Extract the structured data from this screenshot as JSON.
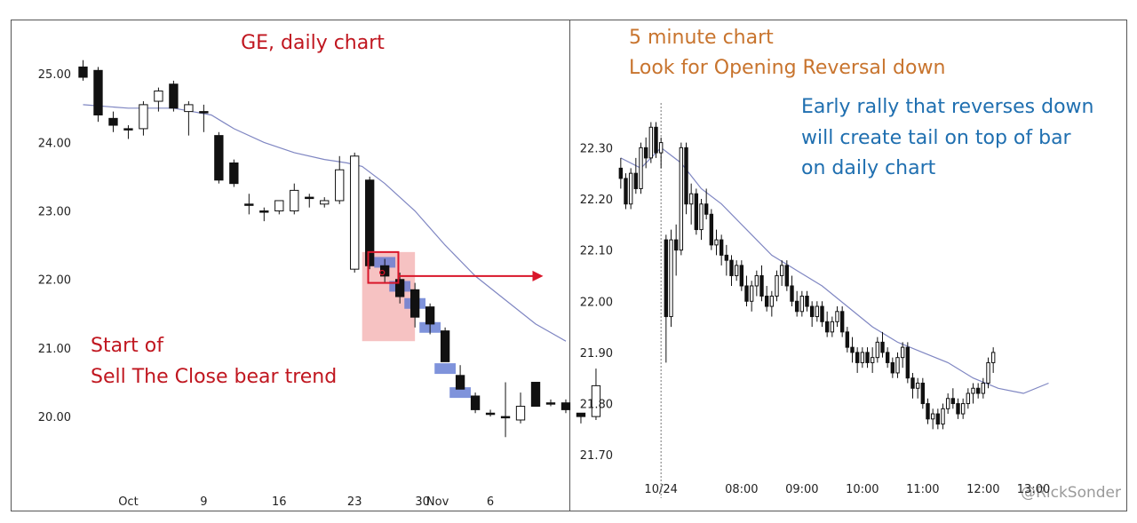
{
  "watermark": "@RickSonder",
  "chart_data": [
    {
      "type": "candlestick",
      "title": "GE, daily chart",
      "annotation_lines": [
        "Start of",
        "Sell The Close bear trend"
      ],
      "ylim": [
        19.6,
        25.3
      ],
      "y_ticks": [
        "25.00",
        "24.00",
        "23.00",
        "22.00",
        "21.00",
        "20.00"
      ],
      "y_tick_values": [
        25,
        24,
        23,
        22,
        21,
        20
      ],
      "x_ticks": [
        {
          "label": "Oct",
          "i": 3
        },
        {
          "label": "9",
          "i": 8
        },
        {
          "label": "16",
          "i": 13
        },
        {
          "label": "23",
          "i": 18
        },
        {
          "label": "30",
          "i": 22.5
        },
        {
          "label": "Nov",
          "i": 23.5
        },
        {
          "label": "6",
          "i": 27
        }
      ],
      "n_slots": 31.5,
      "bars": [
        {
          "o": 25.1,
          "h": 25.2,
          "l": 24.9,
          "c": 24.95
        },
        {
          "o": 25.05,
          "h": 25.1,
          "l": 24.3,
          "c": 24.4
        },
        {
          "o": 24.35,
          "h": 24.45,
          "l": 24.15,
          "c": 24.25
        },
        {
          "o": 24.2,
          "h": 24.25,
          "l": 24.05,
          "c": 24.2
        },
        {
          "o": 24.2,
          "h": 24.6,
          "l": 24.1,
          "c": 24.55
        },
        {
          "o": 24.6,
          "h": 24.8,
          "l": 24.45,
          "c": 24.75
        },
        {
          "o": 24.85,
          "h": 24.9,
          "l": 24.45,
          "c": 24.5
        },
        {
          "o": 24.45,
          "h": 24.6,
          "l": 24.1,
          "c": 24.55
        },
        {
          "o": 24.45,
          "h": 24.55,
          "l": 24.15,
          "c": 24.45
        },
        {
          "o": 24.1,
          "h": 24.15,
          "l": 23.4,
          "c": 23.45
        },
        {
          "o": 23.7,
          "h": 23.75,
          "l": 23.35,
          "c": 23.4
        },
        {
          "o": 23.1,
          "h": 23.25,
          "l": 22.95,
          "c": 23.1
        },
        {
          "o": 23.0,
          "h": 23.05,
          "l": 22.85,
          "c": 23.0
        },
        {
          "o": 23.0,
          "h": 23.15,
          "l": 22.95,
          "c": 23.15
        },
        {
          "o": 23.0,
          "h": 23.4,
          "l": 22.95,
          "c": 23.3
        },
        {
          "o": 23.2,
          "h": 23.25,
          "l": 23.05,
          "c": 23.2
        },
        {
          "o": 23.1,
          "h": 23.2,
          "l": 23.05,
          "c": 23.15
        },
        {
          "o": 23.15,
          "h": 23.8,
          "l": 23.1,
          "c": 23.6
        },
        {
          "o": 22.15,
          "h": 23.85,
          "l": 22.1,
          "c": 23.8
        },
        {
          "o": 23.45,
          "h": 23.5,
          "l": 22.15,
          "c": 22.2
        },
        {
          "o": 22.2,
          "h": 22.3,
          "l": 21.95,
          "c": 22.05
        },
        {
          "o": 22.0,
          "h": 22.1,
          "l": 21.65,
          "c": 21.75
        },
        {
          "o": 21.85,
          "h": 21.95,
          "l": 21.3,
          "c": 21.45
        },
        {
          "o": 21.6,
          "h": 21.65,
          "l": 21.2,
          "c": 21.35
        },
        {
          "o": 21.25,
          "h": 21.3,
          "l": 20.8,
          "c": 20.8
        },
        {
          "o": 20.6,
          "h": 20.75,
          "l": 20.4,
          "c": 20.4
        },
        {
          "o": 20.3,
          "h": 20.35,
          "l": 20.05,
          "c": 20.1
        },
        {
          "o": 20.05,
          "h": 20.1,
          "l": 20.0,
          "c": 20.05
        },
        {
          "o": 20.0,
          "h": 20.5,
          "l": 19.7,
          "c": 20.0
        },
        {
          "o": 19.95,
          "h": 20.35,
          "l": 19.9,
          "c": 20.15
        },
        {
          "o": 20.5,
          "h": 20.5,
          "l": 20.15,
          "c": 20.15
        },
        {
          "o": 20.2,
          "h": 20.25,
          "l": 20.15,
          "c": 20.2
        },
        {
          "o": 20.2,
          "h": 20.25,
          "l": 20.05,
          "c": 20.1
        },
        {
          "o": 20.05,
          "h": 20.05,
          "l": 19.9,
          "c": 20.0
        },
        {
          "o": 20.0,
          "h": 20.7,
          "l": 19.95,
          "c": 20.45
        }
      ],
      "ema": [
        {
          "i": 0,
          "v": 24.55
        },
        {
          "i": 3,
          "v": 24.5
        },
        {
          "i": 6,
          "v": 24.5
        },
        {
          "i": 8.5,
          "v": 24.4
        },
        {
          "i": 10,
          "v": 24.2
        },
        {
          "i": 12,
          "v": 24.0
        },
        {
          "i": 14,
          "v": 23.85
        },
        {
          "i": 16,
          "v": 23.75
        },
        {
          "i": 17.5,
          "v": 23.7
        },
        {
          "i": 18.5,
          "v": 23.65
        },
        {
          "i": 20,
          "v": 23.4
        },
        {
          "i": 22,
          "v": 23.0
        },
        {
          "i": 24,
          "v": 22.5
        },
        {
          "i": 26,
          "v": 22.05
        },
        {
          "i": 28,
          "v": 21.7
        },
        {
          "i": 30,
          "v": 21.35
        },
        {
          "i": 32,
          "v": 21.1
        }
      ],
      "highlight_box": {
        "i_start": 19,
        "i_end": 21.5,
        "y_low": 21.1,
        "y_high": 22.4
      },
      "signal_box": {
        "i_start": 19.4,
        "i_end": 20.4,
        "y_low": 21.95,
        "y_high": 22.4
      },
      "arrow": {
        "i_start": 20.4,
        "i_end": 30.5,
        "y": 22.05
      },
      "blue_marks": [
        {
          "i": 20,
          "y": 22.25
        },
        {
          "i": 21,
          "y": 21.9
        },
        {
          "i": 22,
          "y": 21.65
        },
        {
          "i": 23,
          "y": 21.3
        },
        {
          "i": 24,
          "y": 20.7
        },
        {
          "i": 25,
          "y": 20.35
        }
      ]
    },
    {
      "type": "candlestick",
      "title_lines": [
        "5 minute chart",
        "Look for Opening Reversal down"
      ],
      "annotation_lines": [
        "Early rally that reverses down",
        "will create tail on top of bar",
        "on daily chart"
      ],
      "ylim": [
        21.65,
        22.37
      ],
      "y_ticks": [
        "22.30",
        "22.20",
        "22.10",
        "22.00",
        "21.90",
        "21.80",
        "21.70"
      ],
      "y_tick_values": [
        22.3,
        22.2,
        22.1,
        22.0,
        21.9,
        21.8,
        21.7
      ],
      "x_ticks": [
        {
          "label": "10/24",
          "i": 8
        },
        {
          "label": "08:00",
          "i": 24
        },
        {
          "label": "09:00",
          "i": 36
        },
        {
          "label": "10:00",
          "i": 48
        },
        {
          "label": "11:00",
          "i": 60
        },
        {
          "label": "12:00",
          "i": 72
        },
        {
          "label": "13:00",
          "i": 82
        }
      ],
      "session_line_i": 8,
      "n_slots": 90,
      "ema": [
        {
          "i": 0,
          "v": 22.28
        },
        {
          "i": 4,
          "v": 22.26
        },
        {
          "i": 8,
          "v": 22.3
        },
        {
          "i": 12,
          "v": 22.27
        },
        {
          "i": 16,
          "v": 22.22
        },
        {
          "i": 20,
          "v": 22.19
        },
        {
          "i": 25,
          "v": 22.14
        },
        {
          "i": 30,
          "v": 22.09
        },
        {
          "i": 35,
          "v": 22.06
        },
        {
          "i": 40,
          "v": 22.03
        },
        {
          "i": 45,
          "v": 21.99
        },
        {
          "i": 50,
          "v": 21.95
        },
        {
          "i": 55,
          "v": 21.92
        },
        {
          "i": 60,
          "v": 21.9
        },
        {
          "i": 65,
          "v": 21.88
        },
        {
          "i": 70,
          "v": 21.85
        },
        {
          "i": 75,
          "v": 21.83
        },
        {
          "i": 80,
          "v": 21.82
        },
        {
          "i": 85,
          "v": 21.84
        }
      ],
      "bars": [
        {
          "o": 22.26,
          "h": 22.28,
          "l": 22.22,
          "c": 22.24
        },
        {
          "o": 22.24,
          "h": 22.25,
          "l": 22.18,
          "c": 22.19
        },
        {
          "o": 22.19,
          "h": 22.26,
          "l": 22.18,
          "c": 22.25
        },
        {
          "o": 22.25,
          "h": 22.28,
          "l": 22.21,
          "c": 22.22
        },
        {
          "o": 22.22,
          "h": 22.31,
          "l": 22.21,
          "c": 22.3
        },
        {
          "o": 22.3,
          "h": 22.32,
          "l": 22.26,
          "c": 22.28
        },
        {
          "o": 22.28,
          "h": 22.35,
          "l": 22.27,
          "c": 22.34
        },
        {
          "o": 22.34,
          "h": 22.35,
          "l": 22.28,
          "c": 22.29
        },
        {
          "o": 22.29,
          "h": 22.32,
          "l": 22.26,
          "c": 22.31
        },
        {
          "o": 22.12,
          "h": 22.13,
          "l": 21.88,
          "c": 21.97
        },
        {
          "o": 21.97,
          "h": 22.14,
          "l": 21.95,
          "c": 22.12
        },
        {
          "o": 22.12,
          "h": 22.15,
          "l": 22.05,
          "c": 22.1
        },
        {
          "o": 22.1,
          "h": 22.31,
          "l": 22.09,
          "c": 22.3
        },
        {
          "o": 22.3,
          "h": 22.31,
          "l": 22.17,
          "c": 22.19
        },
        {
          "o": 22.19,
          "h": 22.23,
          "l": 22.15,
          "c": 22.21
        },
        {
          "o": 22.21,
          "h": 22.22,
          "l": 22.13,
          "c": 22.14
        },
        {
          "o": 22.14,
          "h": 22.2,
          "l": 22.12,
          "c": 22.19
        },
        {
          "o": 22.19,
          "h": 22.22,
          "l": 22.16,
          "c": 22.17
        },
        {
          "o": 22.17,
          "h": 22.18,
          "l": 22.1,
          "c": 22.11
        },
        {
          "o": 22.11,
          "h": 22.14,
          "l": 22.09,
          "c": 22.12
        },
        {
          "o": 22.12,
          "h": 22.13,
          "l": 22.07,
          "c": 22.09
        },
        {
          "o": 22.09,
          "h": 22.11,
          "l": 22.05,
          "c": 22.08
        },
        {
          "o": 22.08,
          "h": 22.09,
          "l": 22.03,
          "c": 22.05
        },
        {
          "o": 22.05,
          "h": 22.08,
          "l": 22.04,
          "c": 22.07
        },
        {
          "o": 22.07,
          "h": 22.08,
          "l": 22.02,
          "c": 22.03
        },
        {
          "o": 22.03,
          "h": 22.05,
          "l": 21.99,
          "c": 22.0
        },
        {
          "o": 22.0,
          "h": 22.04,
          "l": 21.98,
          "c": 22.03
        },
        {
          "o": 22.03,
          "h": 22.06,
          "l": 22.01,
          "c": 22.05
        },
        {
          "o": 22.05,
          "h": 22.07,
          "l": 22.0,
          "c": 22.01
        },
        {
          "o": 22.01,
          "h": 22.03,
          "l": 21.98,
          "c": 21.99
        },
        {
          "o": 21.99,
          "h": 22.02,
          "l": 21.97,
          "c": 22.01
        },
        {
          "o": 22.01,
          "h": 22.06,
          "l": 22.0,
          "c": 22.05
        },
        {
          "o": 22.05,
          "h": 22.08,
          "l": 22.03,
          "c": 22.07
        },
        {
          "o": 22.07,
          "h": 22.08,
          "l": 22.02,
          "c": 22.03
        },
        {
          "o": 22.03,
          "h": 22.05,
          "l": 21.99,
          "c": 22.0
        },
        {
          "o": 22.0,
          "h": 22.02,
          "l": 21.97,
          "c": 21.98
        },
        {
          "o": 21.98,
          "h": 22.02,
          "l": 21.97,
          "c": 22.01
        },
        {
          "o": 22.01,
          "h": 22.02,
          "l": 21.98,
          "c": 21.99
        },
        {
          "o": 21.99,
          "h": 22.0,
          "l": 21.95,
          "c": 21.97
        },
        {
          "o": 21.97,
          "h": 22.0,
          "l": 21.96,
          "c": 21.99
        },
        {
          "o": 21.99,
          "h": 22.0,
          "l": 21.95,
          "c": 21.96
        },
        {
          "o": 21.96,
          "h": 21.98,
          "l": 21.93,
          "c": 21.94
        },
        {
          "o": 21.94,
          "h": 21.97,
          "l": 21.93,
          "c": 21.96
        },
        {
          "o": 21.96,
          "h": 21.99,
          "l": 21.95,
          "c": 21.98
        },
        {
          "o": 21.98,
          "h": 21.99,
          "l": 21.93,
          "c": 21.94
        },
        {
          "o": 21.94,
          "h": 21.95,
          "l": 21.9,
          "c": 21.91
        },
        {
          "o": 21.91,
          "h": 21.93,
          "l": 21.88,
          "c": 21.9
        },
        {
          "o": 21.9,
          "h": 21.91,
          "l": 21.86,
          "c": 21.88
        },
        {
          "o": 21.88,
          "h": 21.91,
          "l": 21.87,
          "c": 21.9
        },
        {
          "o": 21.9,
          "h": 21.91,
          "l": 21.87,
          "c": 21.88
        },
        {
          "o": 21.88,
          "h": 21.91,
          "l": 21.86,
          "c": 21.89
        },
        {
          "o": 21.89,
          "h": 21.93,
          "l": 21.88,
          "c": 21.92
        },
        {
          "o": 21.92,
          "h": 21.94,
          "l": 21.89,
          "c": 21.9
        },
        {
          "o": 21.9,
          "h": 21.91,
          "l": 21.87,
          "c": 21.88
        },
        {
          "o": 21.88,
          "h": 21.89,
          "l": 21.85,
          "c": 21.86
        },
        {
          "o": 21.86,
          "h": 21.9,
          "l": 21.85,
          "c": 21.89
        },
        {
          "o": 21.89,
          "h": 21.92,
          "l": 21.87,
          "c": 21.91
        },
        {
          "o": 21.91,
          "h": 21.92,
          "l": 21.84,
          "c": 21.85
        },
        {
          "o": 21.85,
          "h": 21.86,
          "l": 21.81,
          "c": 21.83
        },
        {
          "o": 21.83,
          "h": 21.85,
          "l": 21.81,
          "c": 21.84
        },
        {
          "o": 21.84,
          "h": 21.85,
          "l": 21.79,
          "c": 21.8
        },
        {
          "o": 21.8,
          "h": 21.81,
          "l": 21.76,
          "c": 21.77
        },
        {
          "o": 21.77,
          "h": 21.79,
          "l": 21.75,
          "c": 21.78
        },
        {
          "o": 21.78,
          "h": 21.79,
          "l": 21.75,
          "c": 21.76
        },
        {
          "o": 21.76,
          "h": 21.8,
          "l": 21.75,
          "c": 21.79
        },
        {
          "o": 21.79,
          "h": 21.82,
          "l": 21.78,
          "c": 21.81
        },
        {
          "o": 21.81,
          "h": 21.83,
          "l": 21.79,
          "c": 21.8
        },
        {
          "o": 21.8,
          "h": 21.81,
          "l": 21.77,
          "c": 21.78
        },
        {
          "o": 21.78,
          "h": 21.81,
          "l": 21.77,
          "c": 21.8
        },
        {
          "o": 21.8,
          "h": 21.83,
          "l": 21.79,
          "c": 21.82
        },
        {
          "o": 21.82,
          "h": 21.84,
          "l": 21.8,
          "c": 21.83
        },
        {
          "o": 21.83,
          "h": 21.84,
          "l": 21.81,
          "c": 21.82
        },
        {
          "o": 21.82,
          "h": 21.85,
          "l": 21.81,
          "c": 21.84
        },
        {
          "o": 21.84,
          "h": 21.89,
          "l": 21.83,
          "c": 21.88
        },
        {
          "o": 21.88,
          "h": 21.91,
          "l": 21.86,
          "c": 21.9
        }
      ]
    }
  ]
}
